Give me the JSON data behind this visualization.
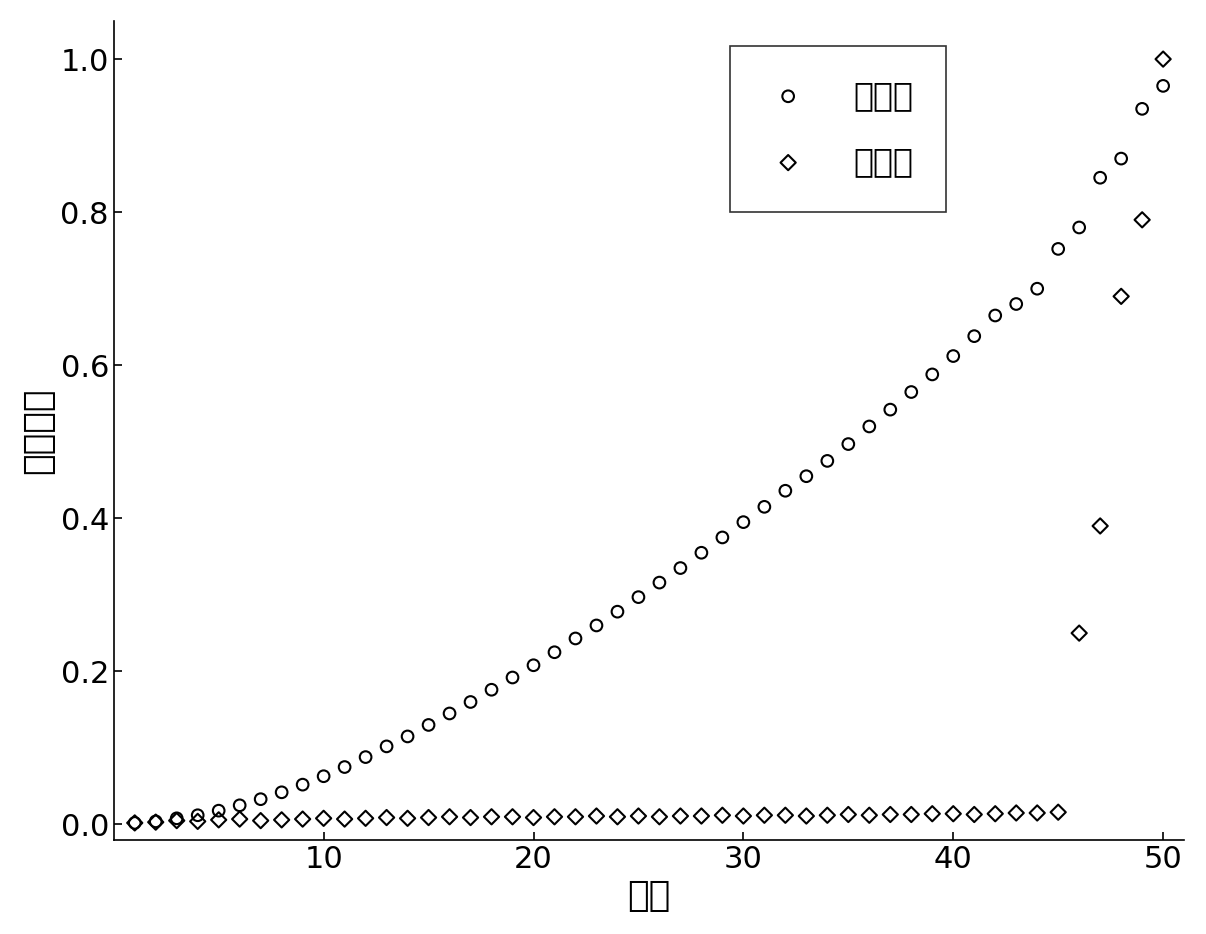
{
  "xlabel": "序号",
  "ylabel": "相对幅度",
  "legend_no_signal": "无信号",
  "legend_with_signal": "有信号",
  "xlim_min": 0,
  "xlim_max": 51,
  "ylim_min": -0.02,
  "ylim_max": 1.05,
  "xticks": [
    10,
    20,
    30,
    40,
    50
  ],
  "yticks": [
    0,
    0.2,
    0.4,
    0.6,
    0.8,
    1.0
  ],
  "background_color": "#ffffff",
  "marker_color": "#000000",
  "circle_size": 70,
  "diamond_size": 60,
  "no_signal_x": [
    1,
    2,
    3,
    4,
    5,
    6,
    7,
    8,
    9,
    10,
    11,
    12,
    13,
    14,
    15,
    16,
    17,
    18,
    19,
    20,
    21,
    22,
    23,
    24,
    25,
    26,
    27,
    28,
    29,
    30,
    31,
    32,
    33,
    34,
    35,
    36,
    37,
    38,
    39,
    40,
    41,
    42,
    43,
    44,
    45,
    46,
    47,
    48,
    49,
    50
  ],
  "no_signal_y": [
    0.002,
    0.004,
    0.008,
    0.012,
    0.018,
    0.025,
    0.033,
    0.042,
    0.052,
    0.063,
    0.075,
    0.088,
    0.102,
    0.115,
    0.13,
    0.145,
    0.16,
    0.176,
    0.192,
    0.208,
    0.225,
    0.243,
    0.26,
    0.278,
    0.297,
    0.316,
    0.335,
    0.355,
    0.375,
    0.395,
    0.415,
    0.436,
    0.455,
    0.475,
    0.497,
    0.52,
    0.542,
    0.565,
    0.588,
    0.612,
    0.638,
    0.665,
    0.68,
    0.7,
    0.752,
    0.78,
    0.845,
    0.87,
    0.935,
    0.965
  ],
  "with_signal_x": [
    1,
    2,
    3,
    4,
    5,
    6,
    7,
    8,
    9,
    10,
    11,
    12,
    13,
    14,
    15,
    16,
    17,
    18,
    19,
    20,
    21,
    22,
    23,
    24,
    25,
    26,
    27,
    28,
    29,
    30,
    31,
    32,
    33,
    34,
    35,
    36,
    37,
    38,
    39,
    40,
    41,
    42,
    43,
    44,
    45,
    46,
    47,
    48,
    49,
    50
  ],
  "with_signal_y": [
    0.002,
    0.003,
    0.005,
    0.004,
    0.006,
    0.007,
    0.005,
    0.006,
    0.007,
    0.008,
    0.007,
    0.008,
    0.009,
    0.008,
    0.009,
    0.01,
    0.009,
    0.01,
    0.01,
    0.009,
    0.01,
    0.01,
    0.011,
    0.01,
    0.011,
    0.01,
    0.011,
    0.011,
    0.012,
    0.011,
    0.012,
    0.012,
    0.011,
    0.012,
    0.013,
    0.012,
    0.013,
    0.013,
    0.014,
    0.014,
    0.013,
    0.014,
    0.015,
    0.015,
    0.016,
    0.25,
    0.39,
    0.69,
    0.79,
    1.0
  ],
  "xlabel_fontsize": 26,
  "ylabel_fontsize": 26,
  "tick_fontsize": 22,
  "legend_fontsize": 24,
  "linewidth": 1.5
}
